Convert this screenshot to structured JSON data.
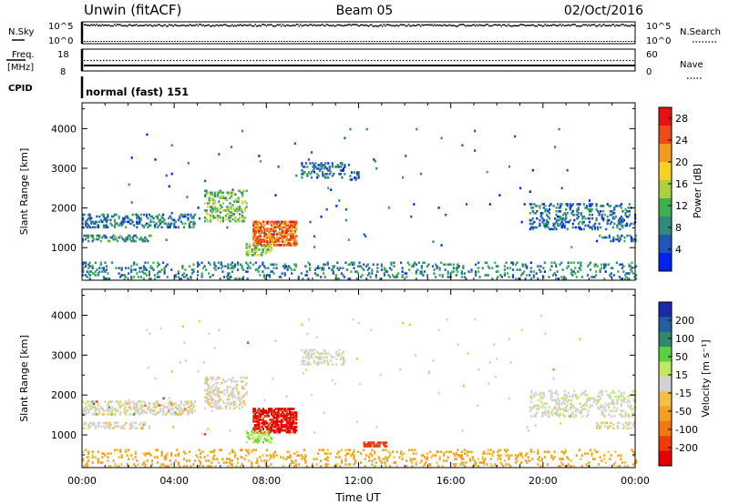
{
  "header": {
    "station": "Unwin (fitACF)",
    "beam": "Beam 05",
    "date": "02/Oct/2016"
  },
  "status_panels": {
    "nsky_label": "N.Sky",
    "nsky_ticks": [
      "10^5",
      "10^0"
    ],
    "nsearch_label": "N.Search",
    "freq_label": "Freq.",
    "freq_unit": "[MHz]",
    "freq_ticks": [
      "18",
      "8"
    ],
    "nave_label": "Nave",
    "nave_ticks": [
      "60",
      "0"
    ],
    "cpid_label": "CPID",
    "cpid_text": "normal (fast) 151"
  },
  "colors": {
    "power_scale": [
      "#0022ee",
      "#2255bb",
      "#2e8a7a",
      "#3fb04f",
      "#a8d040",
      "#f6d028",
      "#f69a1f",
      "#ee4a1a",
      "#e81010"
    ],
    "velocity_scale": [
      "#e60000",
      "#f03a0a",
      "#f0780f",
      "#f2a020",
      "#f4c040",
      "#d2d2d2",
      "#c0e860",
      "#5ad040",
      "#2e8a6a",
      "#2060a0",
      "#1a2aa8"
    ]
  },
  "chart_data": [
    {
      "type": "heatmap",
      "panel": "power",
      "xlabel": "",
      "ylabel": "Slant Range [km]",
      "x_ticks": [
        "00:00",
        "04:00",
        "08:00",
        "12:00",
        "16:00",
        "20:00",
        "00:00"
      ],
      "y_ticks": [
        "1000",
        "2000",
        "3000",
        "4000"
      ],
      "xlim": [
        0,
        24
      ],
      "ylim": [
        180,
        4650
      ],
      "colorbar": {
        "label": "Power [dB]",
        "ticks": [
          "4",
          "8",
          "12",
          "16",
          "20",
          "24",
          "28"
        ],
        "range": [
          0,
          30
        ]
      },
      "regions": [
        {
          "t": [
            0.0,
            4.9
          ],
          "r": [
            1500,
            1850
          ],
          "dens": 0.35,
          "v": 7,
          "seed": 11
        },
        {
          "t": [
            0.0,
            3.0
          ],
          "r": [
            1150,
            1320
          ],
          "dens": 0.35,
          "v": 9,
          "seed": 12
        },
        {
          "t": [
            5.3,
            7.1
          ],
          "r": [
            1650,
            2450
          ],
          "dens": 0.3,
          "v": 13,
          "seed": 13
        },
        {
          "t": [
            7.4,
            9.3
          ],
          "r": [
            1050,
            1650
          ],
          "dens": 0.65,
          "v": 24,
          "seed": 14
        },
        {
          "t": [
            7.1,
            8.2
          ],
          "r": [
            800,
            1100
          ],
          "dens": 0.45,
          "v": 14,
          "seed": 15
        },
        {
          "t": [
            9.5,
            11.4
          ],
          "r": [
            2750,
            3150
          ],
          "dens": 0.3,
          "v": 7,
          "seed": 16
        },
        {
          "t": [
            11.6,
            12.0
          ],
          "r": [
            2700,
            2900
          ],
          "dens": 0.3,
          "v": 5,
          "seed": 17
        },
        {
          "t": [
            0.0,
            24.0
          ],
          "r": [
            200,
            650
          ],
          "dens": 0.16,
          "v": 8,
          "seed": 18
        },
        {
          "t": [
            19.4,
            24.0
          ],
          "r": [
            1450,
            2100
          ],
          "dens": 0.25,
          "v": 6,
          "seed": 19
        },
        {
          "t": [
            22.3,
            24.0
          ],
          "r": [
            1150,
            1300
          ],
          "dens": 0.35,
          "v": 7,
          "seed": 20
        },
        {
          "t": [
            2.0,
            22.0
          ],
          "r": [
            1000,
            4000
          ],
          "dens": 0.004,
          "v": 6,
          "seed": 21
        }
      ]
    },
    {
      "type": "heatmap",
      "panel": "velocity",
      "xlabel": "Time UT",
      "ylabel": "Slant Range [km]",
      "x_ticks": [
        "00:00",
        "04:00",
        "08:00",
        "12:00",
        "16:00",
        "20:00",
        "00:00"
      ],
      "y_ticks": [
        "1000",
        "2000",
        "3000",
        "4000"
      ],
      "xlim": [
        0,
        24
      ],
      "ylim": [
        180,
        4650
      ],
      "colorbar": {
        "label": "Velocity [m s⁻¹]",
        "ticks": [
          "200",
          "100",
          "50",
          "15",
          "-15",
          "-50",
          "-100",
          "-200"
        ],
        "range": [
          -250,
          250
        ]
      },
      "regions": [
        {
          "t": [
            0.0,
            4.9
          ],
          "r": [
            1500,
            1850
          ],
          "dens": 0.35,
          "v": 0,
          "seed": 31
        },
        {
          "t": [
            0.0,
            3.0
          ],
          "r": [
            1150,
            1320
          ],
          "dens": 0.35,
          "v": 0,
          "seed": 32
        },
        {
          "t": [
            5.3,
            7.1
          ],
          "r": [
            1650,
            2450
          ],
          "dens": 0.3,
          "v": -5,
          "seed": 33
        },
        {
          "t": [
            7.4,
            9.3
          ],
          "r": [
            1050,
            1650
          ],
          "dens": 0.65,
          "v": -210,
          "seed": 34
        },
        {
          "t": [
            7.1,
            8.2
          ],
          "r": [
            800,
            1100
          ],
          "dens": 0.45,
          "v": 40,
          "seed": 35
        },
        {
          "t": [
            9.5,
            11.4
          ],
          "r": [
            2750,
            3150
          ],
          "dens": 0.3,
          "v": 5,
          "seed": 36
        },
        {
          "t": [
            12.2,
            13.2
          ],
          "r": [
            700,
            800
          ],
          "dens": 0.45,
          "v": -180,
          "seed": 37
        },
        {
          "t": [
            0.0,
            24.0
          ],
          "r": [
            200,
            650
          ],
          "dens": 0.16,
          "v": -60,
          "seed": 38
        },
        {
          "t": [
            19.4,
            24.0
          ],
          "r": [
            1450,
            2100
          ],
          "dens": 0.25,
          "v": 5,
          "seed": 39
        },
        {
          "t": [
            22.3,
            24.0
          ],
          "r": [
            1150,
            1300
          ],
          "dens": 0.35,
          "v": 0,
          "seed": 40
        },
        {
          "t": [
            2.0,
            22.0
          ],
          "r": [
            1000,
            4000
          ],
          "dens": 0.004,
          "v": 0,
          "seed": 41
        }
      ]
    }
  ]
}
